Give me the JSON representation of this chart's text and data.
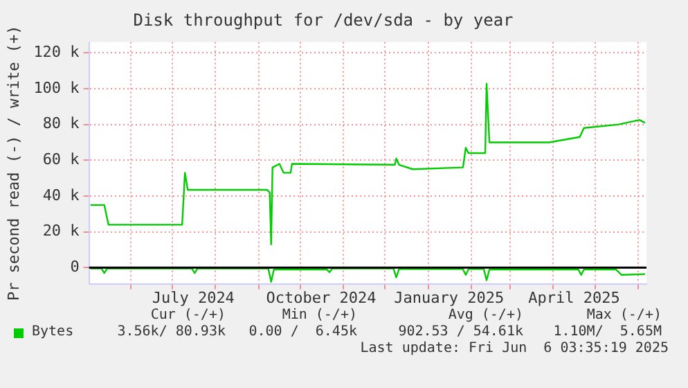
{
  "chart_data": {
    "type": "line",
    "title": "Disk throughput for /dev/sda - by year",
    "ylabel": "Pr second read (-) / write (+)",
    "series": [
      {
        "name": "Bytes",
        "color": "#00cc00",
        "x": [
          "2024-05-03",
          "2024-05-13",
          "2024-05-16",
          "2024-07-08",
          "2024-07-10",
          "2024-07-12",
          "2024-09-07",
          "2024-09-09",
          "2024-09-10",
          "2024-09-11",
          "2024-09-16",
          "2024-09-19",
          "2024-09-24",
          "2024-09-25",
          "2024-12-08",
          "2024-12-09",
          "2024-12-11",
          "2024-12-21",
          "2025-01-26",
          "2025-01-28",
          "2025-01-30",
          "2025-02-11",
          "2025-02-12",
          "2025-02-14",
          "2025-03-29",
          "2025-04-20",
          "2025-04-23",
          "2025-05-18",
          "2025-06-02",
          "2025-06-06"
        ],
        "values": [
          35000,
          35000,
          24000,
          24000,
          53000,
          43500,
          43500,
          42000,
          13000,
          56000,
          58000,
          53000,
          53000,
          58000,
          57500,
          61000,
          57500,
          55000,
          56000,
          67000,
          64000,
          64000,
          102800,
          70000,
          70000,
          73000,
          78000,
          80000,
          82500,
          80900
        ]
      },
      {
        "color": "#00cc00",
        "x": [
          "2024-05-03",
          "2024-05-11",
          "2024-05-13",
          "2024-05-15",
          "2024-07-15",
          "2024-07-17",
          "2024-07-19",
          "2024-09-08",
          "2024-09-10",
          "2024-09-12",
          "2024-10-20",
          "2024-10-22",
          "2024-10-24",
          "2024-12-07",
          "2024-12-09",
          "2024-12-11",
          "2025-01-26",
          "2025-01-28",
          "2025-01-30",
          "2025-02-10",
          "2025-02-12",
          "2025-02-14",
          "2025-04-19",
          "2025-04-21",
          "2025-04-23",
          "2025-05-16",
          "2025-05-20",
          "2025-06-06"
        ],
        "values": [
          -500,
          -500,
          -3000,
          -500,
          -500,
          -3000,
          -500,
          -500,
          -7900,
          -1000,
          -1000,
          -2500,
          -500,
          -500,
          -5400,
          -800,
          -800,
          -4000,
          -800,
          -800,
          -7000,
          -1000,
          -1000,
          -4000,
          -1000,
          -1000,
          -4000,
          -3600
        ]
      }
    ],
    "xlim": [
      "2024-05-02",
      "2025-06-07"
    ],
    "xticks": [
      {
        "value": "2024-06-01",
        "label": null
      },
      {
        "value": "2024-07-01",
        "label": null
      },
      {
        "value": "2024-07-16",
        "label": "July 2024"
      },
      {
        "value": "2024-08-01",
        "label": null
      },
      {
        "value": "2024-09-01",
        "label": null
      },
      {
        "value": "2024-10-01",
        "label": null
      },
      {
        "value": "2024-10-16",
        "label": "October 2024"
      },
      {
        "value": "2024-11-01",
        "label": null
      },
      {
        "value": "2024-12-01",
        "label": null
      },
      {
        "value": "2025-01-01",
        "label": null
      },
      {
        "value": "2025-01-16",
        "label": "January 2025"
      },
      {
        "value": "2025-02-01",
        "label": null
      },
      {
        "value": "2025-03-01",
        "label": null
      },
      {
        "value": "2025-04-01",
        "label": null
      },
      {
        "value": "2025-04-16",
        "label": "April 2025"
      },
      {
        "value": "2025-05-01",
        "label": null
      },
      {
        "value": "2025-06-01",
        "label": null
      }
    ],
    "ylim": [
      -9000,
      126000
    ],
    "yticks": [
      0,
      {
        "value": 20000,
        "label": "20 k"
      },
      {
        "value": 40000,
        "label": "40 k"
      },
      {
        "value": 60000,
        "label": "60 k"
      },
      {
        "value": 80000,
        "label": "80 k"
      },
      {
        "value": 100000,
        "label": "100 k"
      },
      {
        "value": 120000,
        "label": "120 k"
      }
    ],
    "ref_lines": [
      {
        "axis": "y",
        "value": 0,
        "color": "#000000"
      }
    ],
    "grid": true,
    "legend": "bottom",
    "marker": "none",
    "line_style": "solid",
    "annotations": [
      "Cur (-/+)",
      "Min (-/+)",
      "Avg (-/+)",
      "Max (-/+)",
      "3.56k/ 80.93k",
      "0.00 /  6.45k",
      "902.53 / 54.61k",
      "1.10M/  5.65M",
      "Last update: Fri Jun  6 03:35:19 2025"
    ]
  }
}
